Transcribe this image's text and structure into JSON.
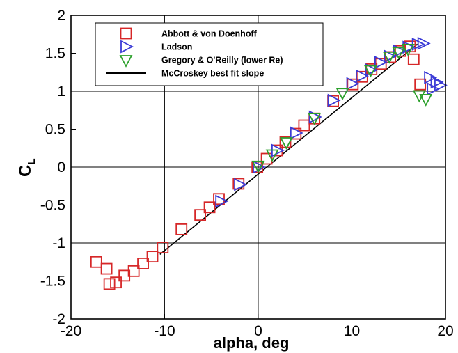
{
  "chart_data": {
    "type": "scatter",
    "xlabel": "alpha, deg",
    "ylabel_main": "C",
    "ylabel_sub": "L",
    "xlim": [
      -20,
      20
    ],
    "ylim": [
      -2,
      2
    ],
    "xticks": [
      -20,
      -10,
      0,
      10,
      20
    ],
    "yticks": [
      -2,
      -1.5,
      -1,
      -0.5,
      0,
      0.5,
      1,
      1.5,
      2
    ],
    "grid": true,
    "legend_position": "top-center",
    "series": [
      {
        "name": "Abbott & von Doenhoff",
        "marker": "square",
        "color": "#d62728",
        "points": [
          [
            -17.3,
            -1.25
          ],
          [
            -16.2,
            -1.34
          ],
          [
            -15.9,
            -1.54
          ],
          [
            -15.2,
            -1.52
          ],
          [
            -14.3,
            -1.43
          ],
          [
            -13.3,
            -1.37
          ],
          [
            -12.3,
            -1.27
          ],
          [
            -11.3,
            -1.18
          ],
          [
            -10.2,
            -1.06
          ],
          [
            -8.2,
            -0.82
          ],
          [
            -6.2,
            -0.63
          ],
          [
            -5.2,
            -0.53
          ],
          [
            -4.2,
            -0.42
          ],
          [
            -2.1,
            -0.22
          ],
          [
            -0.1,
            0.0
          ],
          [
            0.9,
            0.11
          ],
          [
            2.0,
            0.22
          ],
          [
            2.9,
            0.33
          ],
          [
            4.0,
            0.44
          ],
          [
            4.9,
            0.55
          ],
          [
            6.0,
            0.64
          ],
          [
            8.0,
            0.87
          ],
          [
            10.1,
            1.09
          ],
          [
            11.1,
            1.19
          ],
          [
            12.1,
            1.29
          ],
          [
            13.1,
            1.36
          ],
          [
            14.1,
            1.45
          ],
          [
            15.2,
            1.53
          ],
          [
            16.2,
            1.59
          ],
          [
            16.6,
            1.42
          ],
          [
            17.3,
            1.09
          ]
        ]
      },
      {
        "name": "Ladson",
        "marker": "triangle-right",
        "color": "#3b3bd6",
        "points": [
          [
            -4.0,
            -0.45
          ],
          [
            -2.0,
            -0.23
          ],
          [
            0.0,
            0.0
          ],
          [
            2.0,
            0.22
          ],
          [
            4.0,
            0.45
          ],
          [
            6.0,
            0.66
          ],
          [
            8.0,
            0.88
          ],
          [
            10.0,
            1.1
          ],
          [
            11.0,
            1.2
          ],
          [
            12.0,
            1.28
          ],
          [
            13.0,
            1.38
          ],
          [
            14.0,
            1.46
          ],
          [
            15.0,
            1.53
          ],
          [
            16.0,
            1.58
          ],
          [
            17.0,
            1.62
          ],
          [
            17.6,
            1.63
          ],
          [
            18.3,
            1.18
          ],
          [
            19.0,
            1.12
          ],
          [
            19.4,
            1.08
          ],
          [
            18.6,
            1.03
          ]
        ]
      },
      {
        "name": "Gregory & O'Reilly (lower Re)",
        "marker": "triangle-down",
        "color": "#2ca02c",
        "points": [
          [
            0.0,
            0.02
          ],
          [
            1.5,
            0.17
          ],
          [
            3.0,
            0.33
          ],
          [
            6.0,
            0.65
          ],
          [
            9.0,
            0.98
          ],
          [
            12.0,
            1.28
          ],
          [
            14.0,
            1.46
          ],
          [
            15.0,
            1.52
          ],
          [
            16.0,
            1.56
          ],
          [
            17.2,
            0.95
          ],
          [
            17.9,
            0.9
          ]
        ]
      },
      {
        "name": "McCroskey best fit slope",
        "marker": "line",
        "color": "#000000",
        "points": [
          [
            -10.5,
            -1.15
          ],
          [
            17.0,
            1.62
          ]
        ]
      }
    ]
  }
}
